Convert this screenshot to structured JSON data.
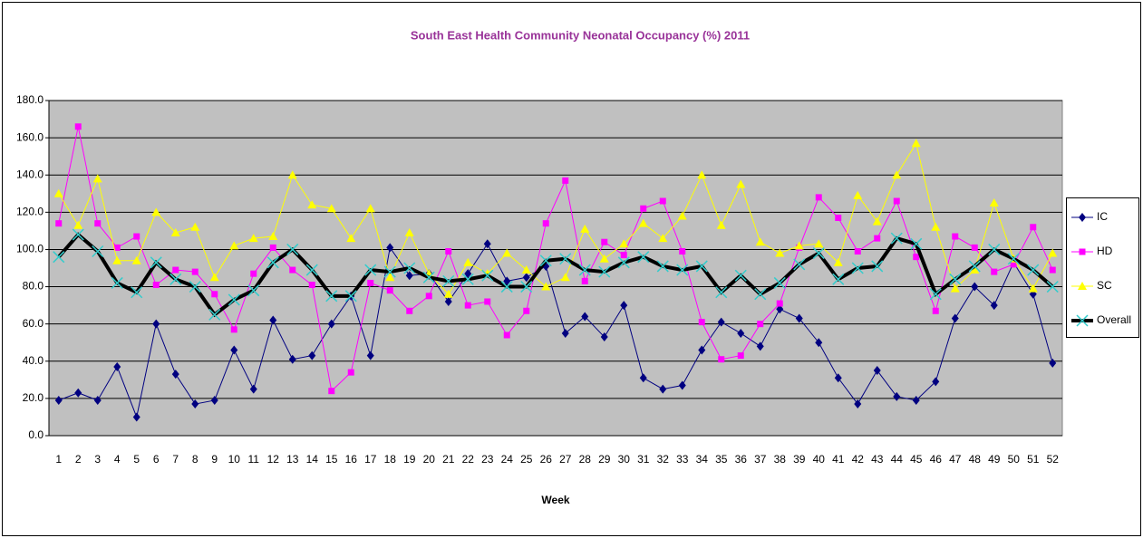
{
  "chart_data": {
    "type": "line",
    "title": "South East Health Community Neonatal Occupancy (%) 2011",
    "x_label": "Week",
    "categories": [
      "1",
      "2",
      "3",
      "4",
      "5",
      "6",
      "7",
      "8",
      "9",
      "10",
      "11",
      "12",
      "13",
      "14",
      "15",
      "16",
      "17",
      "18",
      "19",
      "20",
      "21",
      "22",
      "23",
      "24",
      "25",
      "26",
      "27",
      "28",
      "29",
      "30",
      "31",
      "32",
      "33",
      "34",
      "35",
      "36",
      "37",
      "38",
      "39",
      "40",
      "41",
      "42",
      "43",
      "44",
      "45",
      "46",
      "47",
      "48",
      "49",
      "50",
      "51",
      "52"
    ],
    "series": [
      {
        "name": "IC",
        "color": "#000080",
        "marker": "diamond",
        "values": [
          19,
          23,
          19,
          37,
          10,
          60,
          33,
          17,
          19,
          46,
          25,
          62,
          41,
          43,
          60,
          75,
          43,
          101,
          86,
          87,
          72,
          87,
          103,
          83,
          85,
          91,
          55,
          64,
          53,
          70,
          31,
          25,
          27,
          46,
          61,
          55,
          48,
          68,
          63,
          50,
          31,
          17,
          35,
          21,
          19,
          29,
          63,
          80,
          70,
          93,
          76,
          39
        ]
      },
      {
        "name": "HD",
        "color": "#ff00ff",
        "marker": "square",
        "values": [
          114,
          166,
          114,
          101,
          107,
          81,
          89,
          88,
          76,
          57,
          87,
          101,
          89,
          81,
          24,
          34,
          82,
          78,
          67,
          75,
          99,
          70,
          72,
          54,
          67,
          114,
          137,
          83,
          104,
          97,
          122,
          126,
          99,
          61,
          41,
          43,
          60,
          71,
          101,
          128,
          117,
          99,
          106,
          126,
          96,
          67,
          107,
          101,
          88,
          92,
          112,
          89
        ]
      },
      {
        "name": "SC",
        "color": "#ffff00",
        "marker": "triangle",
        "values": [
          130,
          113,
          138,
          94,
          94,
          120,
          109,
          112,
          85,
          102,
          106,
          107,
          140,
          124,
          122,
          106,
          122,
          85,
          109,
          87,
          76,
          93,
          87,
          98,
          89,
          80,
          85,
          111,
          95,
          103,
          114,
          106,
          118,
          140,
          113,
          135,
          104,
          98,
          102,
          103,
          93,
          129,
          115,
          140,
          157,
          112,
          79,
          89,
          125,
          95,
          79,
          98
        ]
      },
      {
        "name": "Overall",
        "color": "#000000",
        "marker": "x",
        "marker_color": "#33cccc",
        "values": [
          96,
          108,
          99,
          82,
          77,
          93,
          84,
          80,
          65,
          73,
          78,
          93,
          100,
          89,
          75,
          75,
          89,
          88,
          90,
          85,
          83,
          84,
          86,
          80,
          80,
          94,
          95,
          89,
          88,
          93,
          96,
          91,
          89,
          91,
          77,
          86,
          76,
          82,
          92,
          98,
          84,
          90,
          91,
          106,
          103,
          76,
          84,
          91,
          100,
          95,
          89,
          80
        ]
      }
    ],
    "ylim": [
      0,
      180
    ],
    "yticks": [
      {
        "value": 0,
        "label": "0.0"
      },
      {
        "value": 20,
        "label": "20.0"
      },
      {
        "value": 40,
        "label": "40.0"
      },
      {
        "value": 60,
        "label": "60.0"
      },
      {
        "value": 80,
        "label": "80.0"
      },
      {
        "value": 100,
        "label": "100.0"
      },
      {
        "value": 120,
        "label": "120.0"
      },
      {
        "value": 140,
        "label": "140.0"
      },
      {
        "value": 160,
        "label": "160.0"
      },
      {
        "value": 180,
        "label": "180.0"
      }
    ],
    "grid": true,
    "legend": "right"
  }
}
